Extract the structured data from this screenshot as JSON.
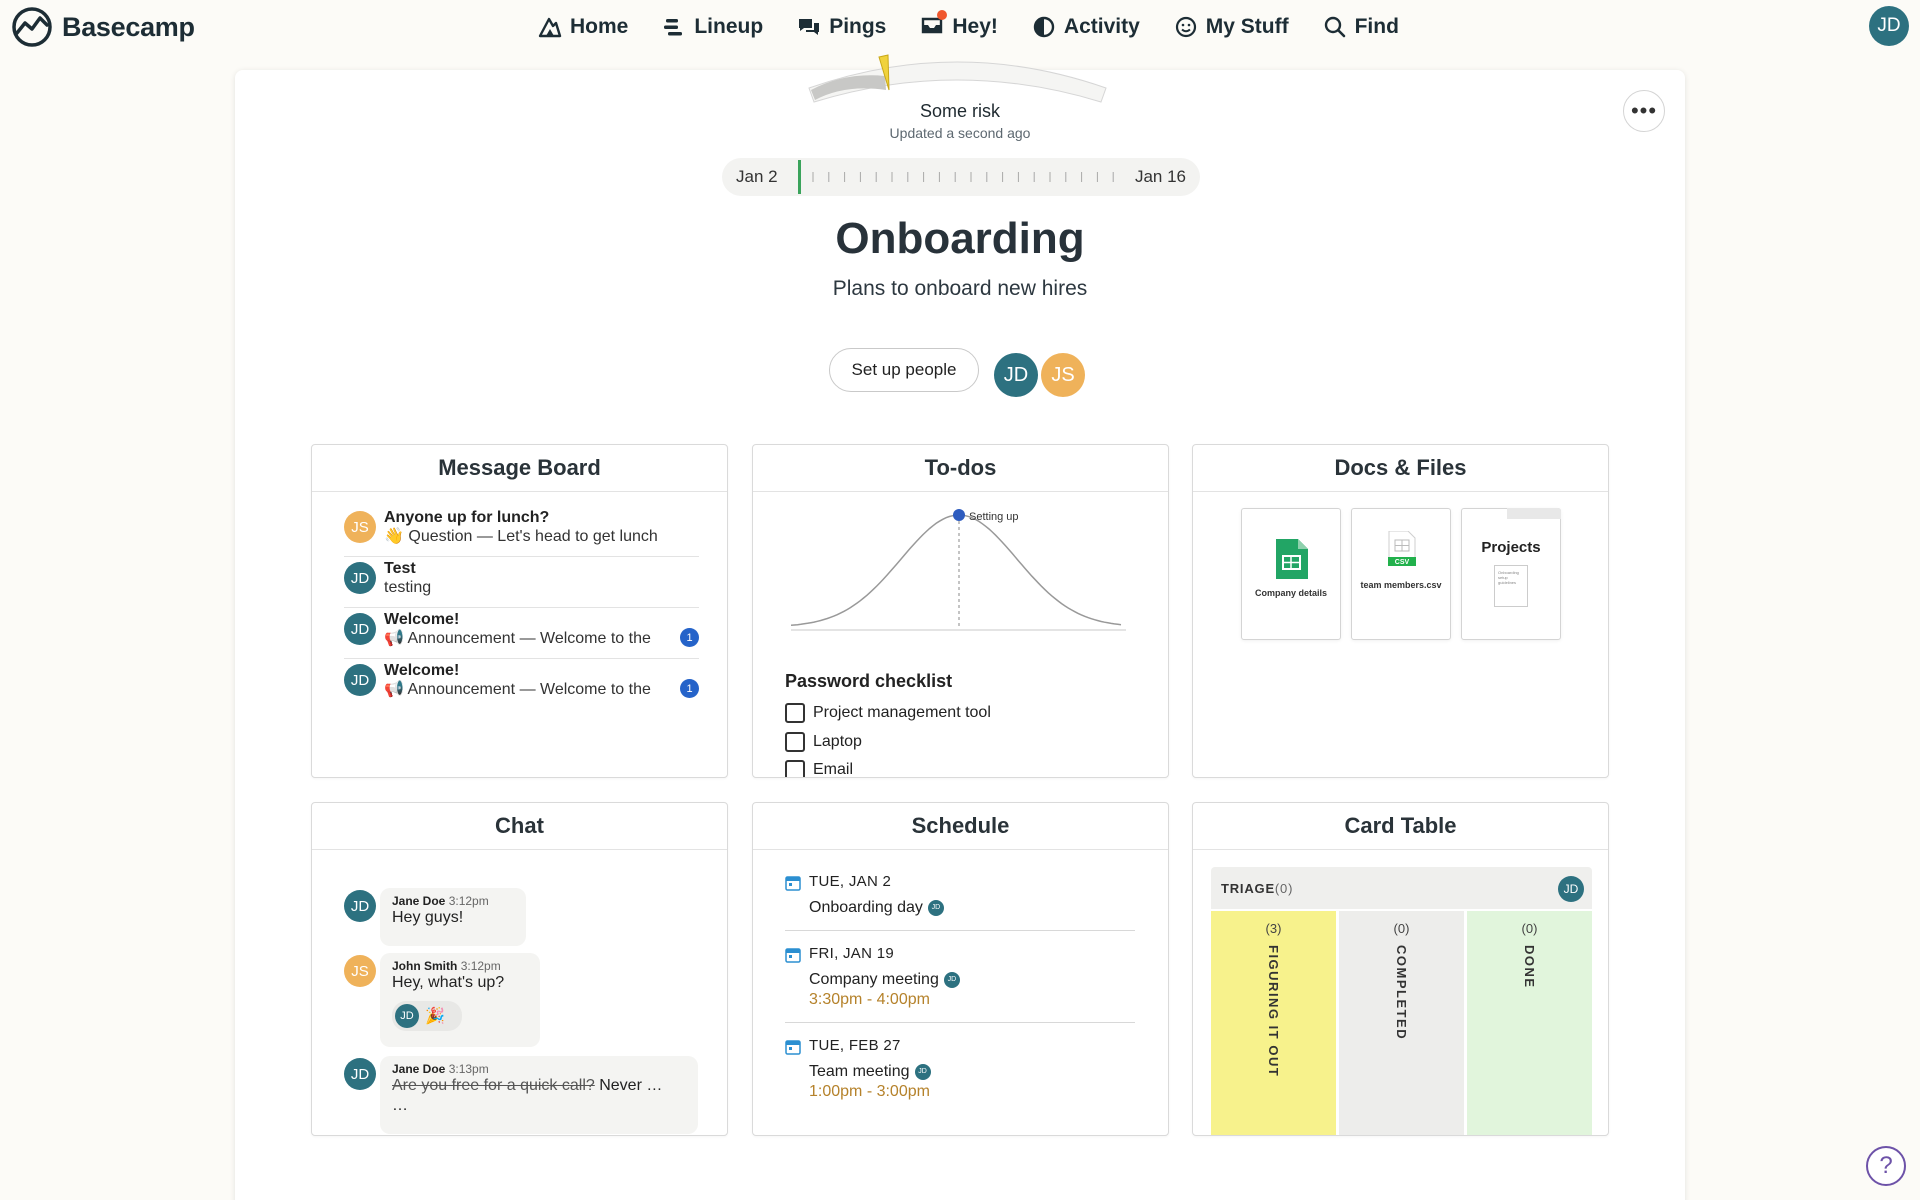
{
  "app": {
    "name": "Basecamp"
  },
  "nav": {
    "items": [
      {
        "label": "Home",
        "icon": "home-icon"
      },
      {
        "label": "Lineup",
        "icon": "lineup-icon"
      },
      {
        "label": "Pings",
        "icon": "pings-icon"
      },
      {
        "label": "Hey!",
        "icon": "hey-icon"
      },
      {
        "label": "Activity",
        "icon": "activity-icon"
      },
      {
        "label": "My Stuff",
        "icon": "smiley-icon"
      },
      {
        "label": "Find",
        "icon": "search-icon"
      }
    ],
    "user_initials": "JD"
  },
  "project": {
    "risk": {
      "label": "Some risk",
      "updated": "Updated a second ago",
      "level": 0.25
    },
    "timeline": {
      "start": "Jan 2",
      "end": "Jan 16"
    },
    "title": "Onboarding",
    "description": "Plans to onboard new hires",
    "setup_people": "Set up people",
    "people": [
      "JD",
      "JS"
    ]
  },
  "message_board": {
    "title": "Message Board",
    "items": [
      {
        "initials": "JS",
        "color": "#efb25a",
        "title": "Anyone up for lunch?",
        "sub": "👋 Question — Let's head to get lunch",
        "badge": ""
      },
      {
        "initials": "JD",
        "color": "#2d7180",
        "title": "Test",
        "sub": "testing",
        "badge": ""
      },
      {
        "initials": "JD",
        "color": "#2d7180",
        "title": "Welcome!",
        "sub": "📢 Announcement — Welcome to the",
        "badge": "1"
      },
      {
        "initials": "JD",
        "color": "#2d7180",
        "title": "Welcome!",
        "sub": "📢 Announcement — Welcome to the",
        "badge": "1"
      }
    ]
  },
  "todos": {
    "title": "To-dos",
    "hill_label": "Setting up",
    "list_title": "Password checklist",
    "items": [
      "Project management tool",
      "Laptop",
      "Email"
    ]
  },
  "docs": {
    "title": "Docs & Files",
    "files": [
      {
        "name": "Company details",
        "type": "sheet"
      },
      {
        "name": "team members.csv",
        "type": "csv",
        "tag": "CSV"
      },
      {
        "name": "Projects",
        "type": "folder",
        "preview": "Onboarding setup guidelines"
      }
    ]
  },
  "chat": {
    "title": "Chat",
    "messages": [
      {
        "initials": "JD",
        "color": "#2d7180",
        "author": "Jane Doe",
        "time": "3:12pm",
        "text": "Hey guys!"
      },
      {
        "initials": "JS",
        "color": "#efb25a",
        "author": "John Smith",
        "time": "3:12pm",
        "text": "Hey, what's up?",
        "boost_initials": "JD",
        "boost_emoji": "🎉"
      },
      {
        "initials": "JD",
        "color": "#2d7180",
        "author": "Jane Doe",
        "time": "3:13pm",
        "struck": "Are you free for a quick call?",
        "text": " Never …",
        "more": "…"
      }
    ]
  },
  "schedule": {
    "title": "Schedule",
    "events": [
      {
        "date": "TUE, JAN 2",
        "name": "Onboarding day",
        "time": "",
        "initials": "JD"
      },
      {
        "date": "FRI, JAN 19",
        "name": "Company meeting",
        "time": "3:30pm - 4:00pm",
        "initials": "JD"
      },
      {
        "date": "TUE, FEB 27",
        "name": "Team meeting",
        "time": "1:00pm - 3:00pm",
        "initials": "JD"
      }
    ]
  },
  "card_table": {
    "title": "Card Table",
    "triage": {
      "label": "TRIAGE",
      "count": "(0)",
      "initials": "JD"
    },
    "columns": [
      {
        "count": "(3)",
        "name": "FIGURING IT OUT",
        "color": "#f7f28c"
      },
      {
        "count": "(0)",
        "name": "COMPLETED",
        "color": "#ededeb"
      },
      {
        "count": "(0)",
        "name": "DONE",
        "color": "#e1f5dc"
      }
    ]
  },
  "colors": {
    "teal": "#2d7180",
    "amber": "#efb25a",
    "badge_blue": "#2563c9",
    "time_gold": "#b5822b"
  }
}
